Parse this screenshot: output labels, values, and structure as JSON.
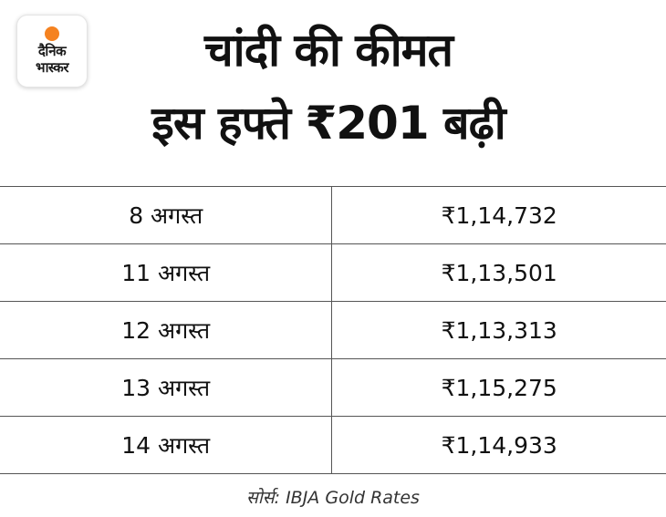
{
  "logo": {
    "line1": "दैनिक",
    "line2": "भास्कर",
    "accent_color": "#f58220"
  },
  "title": {
    "line1": "चांदी की कीमत",
    "line2": "इस हफ्ते ₹201 बढ़ी"
  },
  "table": {
    "rows": [
      {
        "date": "8 अगस्त",
        "price": "₹1,14,732"
      },
      {
        "date": "11 अगस्त",
        "price": "₹1,13,501"
      },
      {
        "date": "12 अगस्त",
        "price": "₹1,13,313"
      },
      {
        "date": "13 अगस्त",
        "price": "₹1,15,275"
      },
      {
        "date": "14 अगस्त",
        "price": "₹1,14,933"
      }
    ]
  },
  "source": "सोर्स: IBJA Gold Rates"
}
